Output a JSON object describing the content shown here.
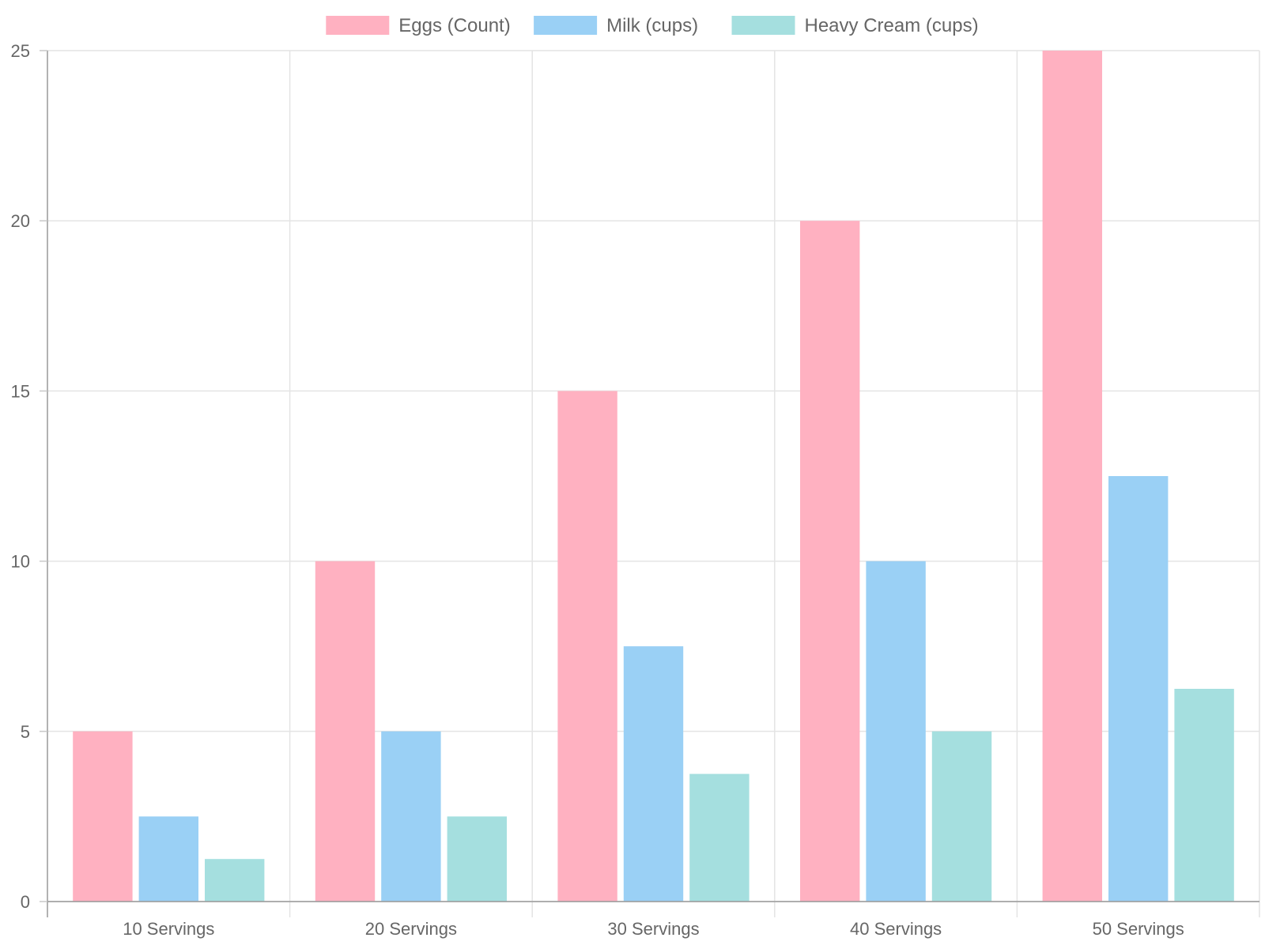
{
  "chart_data": {
    "type": "bar",
    "title": "",
    "xlabel": "",
    "ylabel": "",
    "categories": [
      "10 Servings",
      "20 Servings",
      "30 Servings",
      "40 Servings",
      "50 Servings"
    ],
    "series": [
      {
        "name": "Eggs (Count)",
        "values": [
          5,
          10,
          15,
          20,
          25
        ],
        "color": "#ffb1c1"
      },
      {
        "name": "Milk (cups)",
        "values": [
          2.5,
          5,
          7.5,
          10,
          12.5
        ],
        "color": "#9ad0f5"
      },
      {
        "name": "Heavy Cream (cups)",
        "values": [
          1.25,
          2.5,
          3.75,
          5,
          6.25
        ],
        "color": "#a5dfdf"
      }
    ],
    "ylim": [
      0,
      25
    ],
    "yticks": [
      "0",
      "5",
      "10",
      "15",
      "20",
      "25"
    ],
    "grid": true,
    "legend_position": "top"
  }
}
